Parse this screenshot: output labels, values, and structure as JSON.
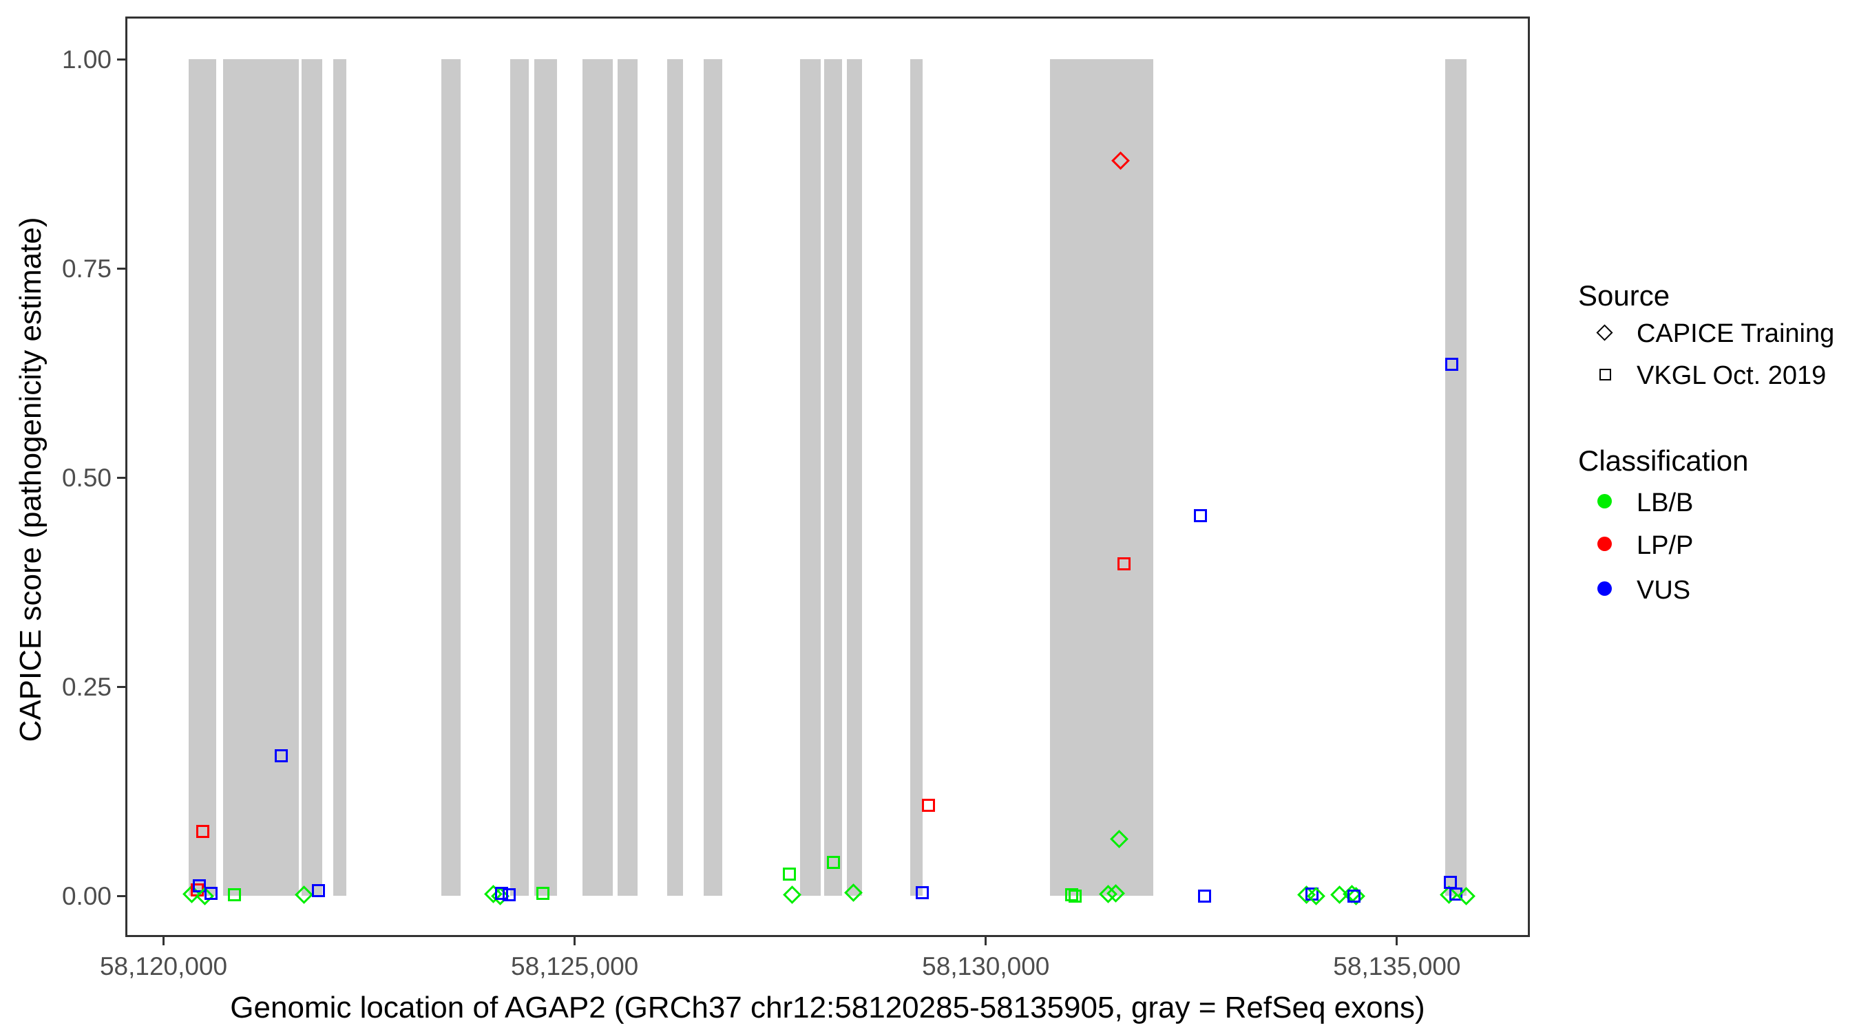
{
  "figure": {
    "x_axis_title": "Genomic location of AGAP2 (GRCh37 chr12:58120285-58135905, gray = RefSeq exons)",
    "y_axis_title": "CAPICE score (pathogenicity estimate)"
  },
  "legend": {
    "source": {
      "title": "Source",
      "items": [
        {
          "label": "CAPICE Training",
          "shape": "diamond"
        },
        {
          "label": "VKGL Oct. 2019",
          "shape": "square"
        }
      ]
    },
    "classification": {
      "title": "Classification",
      "items": [
        {
          "label": "LB/B",
          "color": "#00EE00"
        },
        {
          "label": "LP/P",
          "color": "#FF0000"
        },
        {
          "label": "VUS",
          "color": "#0000FF"
        }
      ]
    }
  },
  "chart_data": {
    "type": "scatter",
    "title": "",
    "xlabel": "Genomic location of AGAP2 (GRCh37 chr12:58120285-58135905, gray = RefSeq exons)",
    "ylabel": "CAPICE score (pathogenicity estimate)",
    "gene": "AGAP2",
    "region": "GRCh37 chr12:58120285-58135905",
    "grid": false,
    "legend_position": "right",
    "x_domain": [
      58119535,
      58136617
    ],
    "y_domain": [
      -0.0493,
      1.051
    ],
    "x_ticks": [
      {
        "value": 58120000,
        "label": "58,120,000"
      },
      {
        "value": 58125000,
        "label": "58,125,000"
      },
      {
        "value": 58130000,
        "label": "58,130,000"
      },
      {
        "value": 58135000,
        "label": "58,135,000"
      }
    ],
    "y_ticks": [
      {
        "value": 0.0,
        "label": "0.00"
      },
      {
        "value": 0.25,
        "label": "0.25"
      },
      {
        "value": 0.5,
        "label": "0.50"
      },
      {
        "value": 0.75,
        "label": "0.75"
      },
      {
        "value": 1.0,
        "label": "1.00"
      }
    ],
    "exon_color": "#CACACA",
    "exon_value_range": [
      0,
      1
    ],
    "exons": [
      [
        58120306,
        58120641
      ],
      [
        58120724,
        58121645
      ],
      [
        58121679,
        58121930
      ],
      [
        58122064,
        58122223
      ],
      [
        58123378,
        58123613
      ],
      [
        58124215,
        58124441
      ],
      [
        58124508,
        58124785
      ],
      [
        58125094,
        58125463
      ],
      [
        58125521,
        58125764
      ],
      [
        58126124,
        58126316
      ],
      [
        58126568,
        58126794
      ],
      [
        58127740,
        58127991
      ],
      [
        58128033,
        58128251
      ],
      [
        58128310,
        58128494
      ],
      [
        58129080,
        58129231
      ],
      [
        58130780,
        58132036
      ],
      [
        58135585,
        58135845
      ]
    ],
    "classification_colors": {
      "LB/B": "#00EE00",
      "LP/P": "#FF0000",
      "VUS": "#0000FF"
    },
    "source_shapes": {
      "CAPICE Training": "diamond",
      "VKGL Oct. 2019": "square"
    },
    "points": [
      {
        "pos": 58120339,
        "score": 0.002,
        "source": "CAPICE Training",
        "classification": "LB/B"
      },
      {
        "pos": 58120414,
        "score": 0.007,
        "source": "VKGL Oct. 2019",
        "classification": "LP/P"
      },
      {
        "pos": 58120431,
        "score": 0.012,
        "source": "VKGL Oct. 2019",
        "classification": "VUS"
      },
      {
        "pos": 58120498,
        "score": 0.0,
        "source": "CAPICE Training",
        "classification": "LB/B"
      },
      {
        "pos": 58120574,
        "score": 0.003,
        "source": "VKGL Oct. 2019",
        "classification": "VUS"
      },
      {
        "pos": 58120864,
        "score": 0.001,
        "source": "VKGL Oct. 2019",
        "classification": "LB/B"
      },
      {
        "pos": 58120473,
        "score": 0.077,
        "source": "VKGL Oct. 2019",
        "classification": "LP/P"
      },
      {
        "pos": 58121430,
        "score": 0.167,
        "source": "VKGL Oct. 2019",
        "classification": "VUS"
      },
      {
        "pos": 58121704,
        "score": 0.001,
        "source": "CAPICE Training",
        "classification": "LB/B"
      },
      {
        "pos": 58121880,
        "score": 0.006,
        "source": "VKGL Oct. 2019",
        "classification": "VUS"
      },
      {
        "pos": 58124012,
        "score": 0.002,
        "source": "CAPICE Training",
        "classification": "LB/B"
      },
      {
        "pos": 58124096,
        "score": 0.0,
        "source": "CAPICE Training",
        "classification": "LB/B"
      },
      {
        "pos": 58124115,
        "score": 0.003,
        "source": "VKGL Oct. 2019",
        "classification": "VUS"
      },
      {
        "pos": 58124207,
        "score": 0.001,
        "source": "VKGL Oct. 2019",
        "classification": "VUS"
      },
      {
        "pos": 58124612,
        "score": 0.003,
        "source": "VKGL Oct. 2019",
        "classification": "LB/B"
      },
      {
        "pos": 58127615,
        "score": 0.026,
        "source": "VKGL Oct. 2019",
        "classification": "LB/B"
      },
      {
        "pos": 58127648,
        "score": 0.001,
        "source": "CAPICE Training",
        "classification": "LB/B"
      },
      {
        "pos": 58128151,
        "score": 0.04,
        "source": "VKGL Oct. 2019",
        "classification": "LB/B"
      },
      {
        "pos": 58128393,
        "score": 0.004,
        "source": "CAPICE Training",
        "classification": "LB/B"
      },
      {
        "pos": 58129224,
        "score": 0.004,
        "source": "VKGL Oct. 2019",
        "classification": "VUS"
      },
      {
        "pos": 58129299,
        "score": 0.108,
        "source": "VKGL Oct. 2019",
        "classification": "LP/P"
      },
      {
        "pos": 58131046,
        "score": 0.001,
        "source": "VKGL Oct. 2019",
        "classification": "LB/B"
      },
      {
        "pos": 58131088,
        "score": 0.0,
        "source": "VKGL Oct. 2019",
        "classification": "LB/B"
      },
      {
        "pos": 58131492,
        "score": 0.002,
        "source": "CAPICE Training",
        "classification": "LB/B"
      },
      {
        "pos": 58131582,
        "score": 0.003,
        "source": "CAPICE Training",
        "classification": "LB/B"
      },
      {
        "pos": 58131623,
        "score": 0.068,
        "source": "CAPICE Training",
        "classification": "LB/B"
      },
      {
        "pos": 58131637,
        "score": 0.879,
        "source": "CAPICE Training",
        "classification": "LP/P"
      },
      {
        "pos": 58131681,
        "score": 0.397,
        "source": "VKGL Oct. 2019",
        "classification": "LP/P"
      },
      {
        "pos": 58132608,
        "score": 0.454,
        "source": "VKGL Oct. 2019",
        "classification": "VUS"
      },
      {
        "pos": 58132661,
        "score": 0.0,
        "source": "VKGL Oct. 2019",
        "classification": "VUS"
      },
      {
        "pos": 58133902,
        "score": 0.001,
        "source": "CAPICE Training",
        "classification": "LB/B"
      },
      {
        "pos": 58133969,
        "score": 0.002,
        "source": "VKGL Oct. 2019",
        "classification": "VUS"
      },
      {
        "pos": 58134019,
        "score": 0.0,
        "source": "CAPICE Training",
        "classification": "LB/B"
      },
      {
        "pos": 58134304,
        "score": 0.001,
        "source": "CAPICE Training",
        "classification": "LB/B"
      },
      {
        "pos": 58134455,
        "score": 0.002,
        "source": "CAPICE Training",
        "classification": "LB/B"
      },
      {
        "pos": 58134505,
        "score": 0.0,
        "source": "CAPICE Training",
        "classification": "LB/B"
      },
      {
        "pos": 58134480,
        "score": 0.0,
        "source": "VKGL Oct. 2019",
        "classification": "VUS"
      },
      {
        "pos": 58135635,
        "score": 0.001,
        "source": "CAPICE Training",
        "classification": "LB/B"
      },
      {
        "pos": 58135652,
        "score": 0.016,
        "source": "VKGL Oct. 2019",
        "classification": "VUS"
      },
      {
        "pos": 58135663,
        "score": 0.635,
        "source": "VKGL Oct. 2019",
        "classification": "VUS"
      },
      {
        "pos": 58135719,
        "score": 0.002,
        "source": "VKGL Oct. 2019",
        "classification": "VUS"
      },
      {
        "pos": 58135845,
        "score": 0.0,
        "source": "CAPICE Training",
        "classification": "LB/B"
      }
    ]
  }
}
